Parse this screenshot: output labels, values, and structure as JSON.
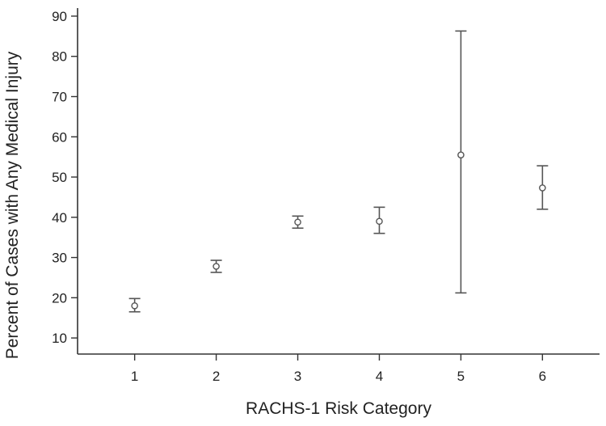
{
  "chart_data": {
    "type": "scatter",
    "title": "",
    "xlabel": "RACHS-1 Risk Category",
    "ylabel": "Percent of Cases with Any Medical Injury",
    "x_ticks": [
      "1",
      "2",
      "3",
      "4",
      "5",
      "6"
    ],
    "y_ticks": [
      "10",
      "20",
      "30",
      "40",
      "50",
      "60",
      "70",
      "80",
      "90"
    ],
    "xlim": [
      0.3,
      6.7
    ],
    "ylim": [
      6,
      92
    ],
    "grid": false,
    "legend": "none",
    "point_color": "#555555",
    "points": [
      {
        "x": 1,
        "y": 18.0,
        "lower": 16.5,
        "upper": 19.8
      },
      {
        "x": 2,
        "y": 27.8,
        "lower": 26.3,
        "upper": 29.3
      },
      {
        "x": 3,
        "y": 38.8,
        "lower": 37.3,
        "upper": 40.3
      },
      {
        "x": 4,
        "y": 39.0,
        "lower": 36.0,
        "upper": 42.5
      },
      {
        "x": 5,
        "y": 55.5,
        "lower": 21.2,
        "upper": 86.3
      },
      {
        "x": 6,
        "y": 47.3,
        "lower": 42.0,
        "upper": 52.8
      }
    ]
  }
}
